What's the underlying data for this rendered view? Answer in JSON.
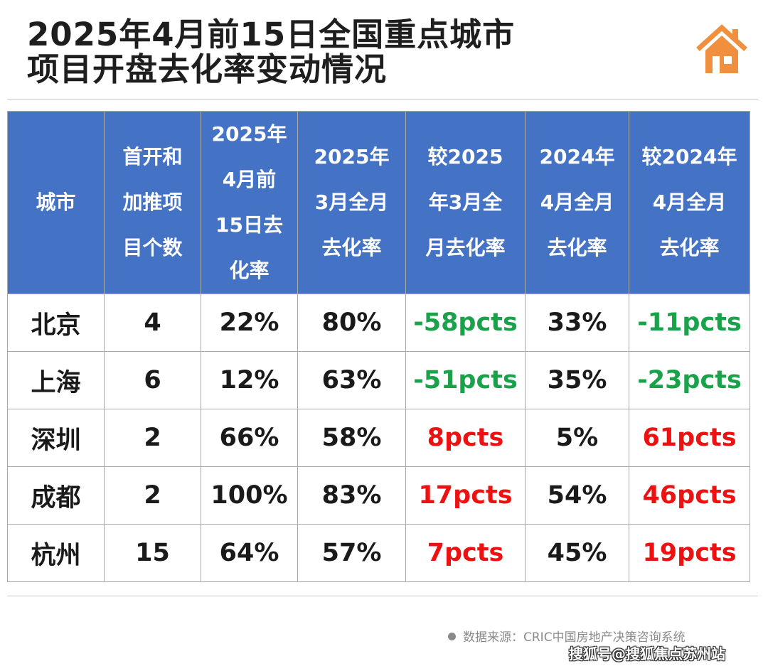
{
  "title_lines": [
    "2025年4月前15日全国重点城市",
    "项目开盘去化率变动情况"
  ],
  "colors": {
    "header_bg": "#4472c4",
    "negative": "#1aa24a",
    "positive": "#ee1111",
    "logo": "#f0903e"
  },
  "chart_data": {
    "type": "table",
    "columns": [
      [
        "城市"
      ],
      [
        "首开和",
        "加推项",
        "目个数"
      ],
      [
        "2025年",
        "4月前",
        "15日去",
        "化率"
      ],
      [
        "2025年",
        "3月全月",
        "去化率"
      ],
      [
        "较2025",
        "年3月全",
        "月去化率"
      ],
      [
        "2024年",
        "4月全月",
        "去化率"
      ],
      [
        "较2024年",
        "4月全月",
        "去化率"
      ]
    ],
    "rows": [
      {
        "city": "北京",
        "projects": "4",
        "rate_apr_2025": "22%",
        "rate_mar_2025": "80%",
        "chg_mar_2025": "-58pcts",
        "rate_apr_2024": "33%",
        "chg_apr_2024": "-11pcts"
      },
      {
        "city": "上海",
        "projects": "6",
        "rate_apr_2025": "12%",
        "rate_mar_2025": "63%",
        "chg_mar_2025": "-51pcts",
        "rate_apr_2024": "35%",
        "chg_apr_2024": "-23pcts"
      },
      {
        "city": "深圳",
        "projects": "2",
        "rate_apr_2025": "66%",
        "rate_mar_2025": "58%",
        "chg_mar_2025": "8pcts",
        "rate_apr_2024": "5%",
        "chg_apr_2024": "61pcts"
      },
      {
        "city": "成都",
        "projects": "2",
        "rate_apr_2025": "100%",
        "rate_mar_2025": "83%",
        "chg_mar_2025": "17pcts",
        "rate_apr_2024": "54%",
        "chg_apr_2024": "46pcts"
      },
      {
        "city": "杭州",
        "projects": "15",
        "rate_apr_2025": "64%",
        "rate_mar_2025": "57%",
        "chg_mar_2025": "7pcts",
        "rate_apr_2024": "45%",
        "chg_apr_2024": "19pcts"
      }
    ]
  },
  "source": "数据来源：CRIC中国房地产决策咨询系统",
  "watermark": "搜狐号@搜狐焦点苏州站"
}
